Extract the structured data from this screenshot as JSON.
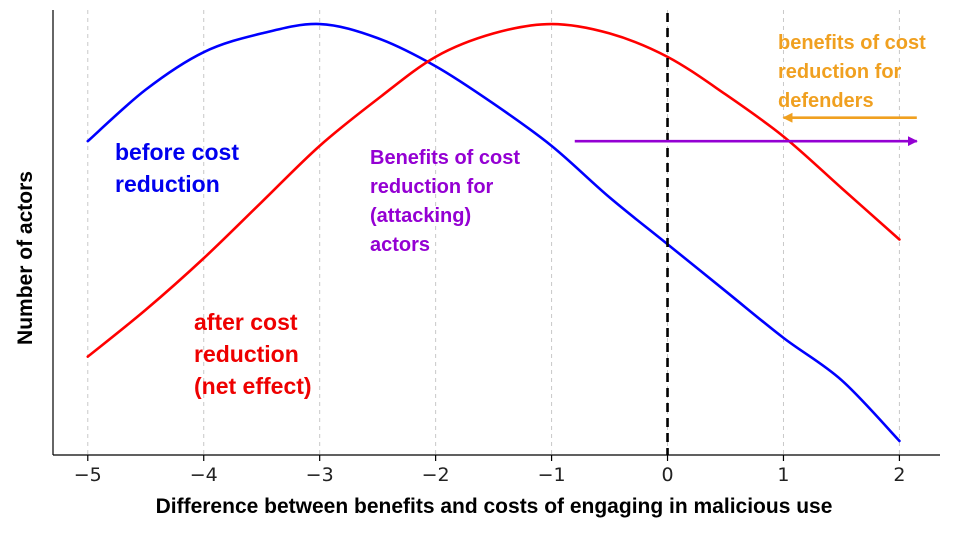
{
  "chart_data": {
    "type": "line",
    "xlabel": "Difference between benefits and costs of engaging in malicious use",
    "ylabel": "Number of actors",
    "xlim": [
      -5.3,
      2.35
    ],
    "ylim": [
      0.08,
      1.03
    ],
    "x_ticks": [
      -5,
      -4,
      -3,
      -2,
      -1,
      0,
      1,
      2
    ],
    "x_tick_labels": [
      "−5",
      "−4",
      "−3",
      "−2",
      "−1",
      "0",
      "1",
      "2"
    ],
    "grid": "vertical dashed at x ticks",
    "threshold_line": {
      "x": 0,
      "style": "black dashed"
    },
    "series": [
      {
        "name": "before cost reduction",
        "color": "#0000ff",
        "x": [
          -5,
          -4.5,
          -4,
          -3.5,
          -3,
          -2.5,
          -2,
          -1.5,
          -1,
          -0.5,
          0,
          0.5,
          1,
          1.5,
          2
        ],
        "values": [
          0.75,
          0.86,
          0.94,
          0.98,
          1.0,
          0.97,
          0.91,
          0.83,
          0.74,
          0.63,
          0.53,
          0.43,
          0.33,
          0.24,
          0.11
        ]
      },
      {
        "name": "after cost reduction (net effect)",
        "color": "#ff0000",
        "x": [
          -5,
          -4.5,
          -4,
          -3.5,
          -3,
          -2.5,
          -2,
          -1.5,
          -1,
          -0.5,
          0,
          0.5,
          1,
          1.5,
          2
        ],
        "values": [
          0.29,
          0.39,
          0.5,
          0.62,
          0.74,
          0.84,
          0.93,
          0.98,
          1.0,
          0.98,
          0.93,
          0.85,
          0.76,
          0.65,
          0.54
        ]
      }
    ],
    "annotations": [
      {
        "id": "before",
        "lines": [
          "before cost",
          "reduction"
        ],
        "color": "#0000ee"
      },
      {
        "id": "after",
        "lines": [
          "after cost",
          "reduction",
          "(net effect)"
        ],
        "color": "#ee0000"
      },
      {
        "id": "attackers",
        "lines": [
          "Benefits of cost",
          "reduction for",
          "(attacking)",
          "actors"
        ],
        "color": "#9400d3"
      },
      {
        "id": "defenders",
        "lines": [
          "benefits of cost",
          "reduction for",
          "defenders"
        ],
        "color": "#f0a020"
      }
    ],
    "arrows": [
      {
        "name": "attackers-arrow",
        "from_x": -0.8,
        "to_x": 2.15,
        "y": 0.75,
        "color": "#9400d3",
        "direction": "right"
      },
      {
        "name": "defenders-arrow",
        "from_x": 2.15,
        "to_x": 1.0,
        "y": 0.8,
        "color": "#f0a020",
        "direction": "left"
      }
    ]
  }
}
